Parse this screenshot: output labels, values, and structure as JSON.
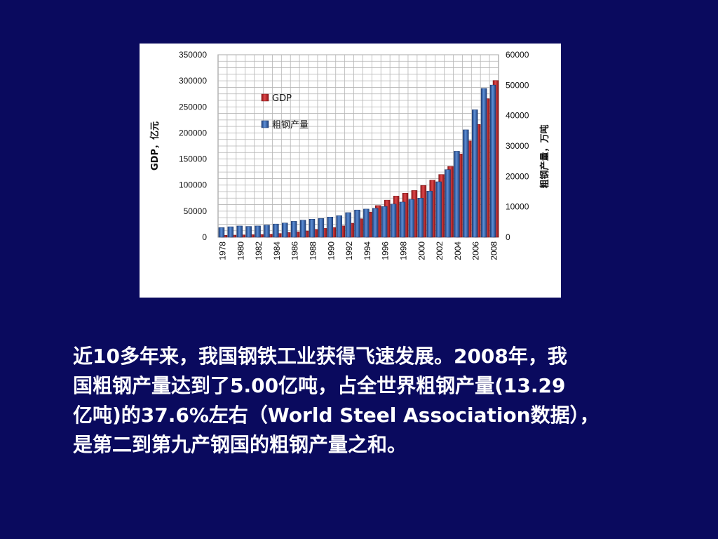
{
  "caption": {
    "lines": [
      "近10多年来，我国钢铁工业获得飞速发展。2008年，我",
      "国粗钢产量达到了5.00亿吨，占全世界粗钢产量(13.29",
      "亿吨)的37.6%左右（World Steel Association数据），",
      "是第二到第九产钢国的粗钢产量之和。"
    ]
  },
  "colors": {
    "background": "#0a0a5e",
    "gdp": "#c0282a",
    "steel": "#2f5fae"
  },
  "chart_data": {
    "type": "bar",
    "years": [
      1978,
      1979,
      1980,
      1981,
      1982,
      1983,
      1984,
      1985,
      1986,
      1987,
      1988,
      1989,
      1990,
      1991,
      1992,
      1993,
      1994,
      1995,
      1996,
      1997,
      1998,
      1999,
      2000,
      2001,
      2002,
      2003,
      2004,
      2005,
      2006,
      2007,
      2008
    ],
    "x_tick_labels": [
      "1978",
      "1980",
      "1982",
      "1984",
      "1986",
      "1988",
      "1990",
      "1992",
      "1994",
      "1996",
      "1998",
      "2000",
      "2002",
      "2004",
      "2006",
      "2008"
    ],
    "series": [
      {
        "name": "GDP",
        "axis": "left",
        "values": [
          3645,
          4063,
          4546,
          4892,
          5323,
          5963,
          7208,
          9016,
          10275,
          12059,
          15043,
          16992,
          18668,
          21782,
          26924,
          35334,
          48198,
          60794,
          71177,
          78973,
          84402,
          89677,
          99215,
          109655,
          120333,
          135823,
          159878,
          184937,
          216314,
          265810,
          300670
        ]
      },
      {
        "name": "粗钢产量",
        "axis": "right",
        "values": [
          3178,
          3448,
          3712,
          3560,
          3716,
          4002,
          4347,
          4679,
          5221,
          5628,
          5943,
          6159,
          6635,
          7100,
          8094,
          8956,
          9261,
          9536,
          10124,
          10894,
          11559,
          12426,
          12850,
          15163,
          18237,
          22234,
          28291,
          35324,
          41915,
          48929,
          50049
        ]
      }
    ],
    "left_axis": {
      "label": "GDP，亿元",
      "ylim": [
        0,
        350000
      ],
      "ticks": [
        "0",
        "50000",
        "100000",
        "150000",
        "200000",
        "250000",
        "300000",
        "350000"
      ]
    },
    "right_axis": {
      "label": "粗钢产量，万吨",
      "ylim": [
        0,
        60000
      ],
      "ticks": [
        "0",
        "10000",
        "20000",
        "30000",
        "40000",
        "50000",
        "60000"
      ]
    },
    "legend": {
      "entries": [
        "GDP",
        "粗钢产量"
      ],
      "placement": "top-left"
    },
    "grid": true
  }
}
